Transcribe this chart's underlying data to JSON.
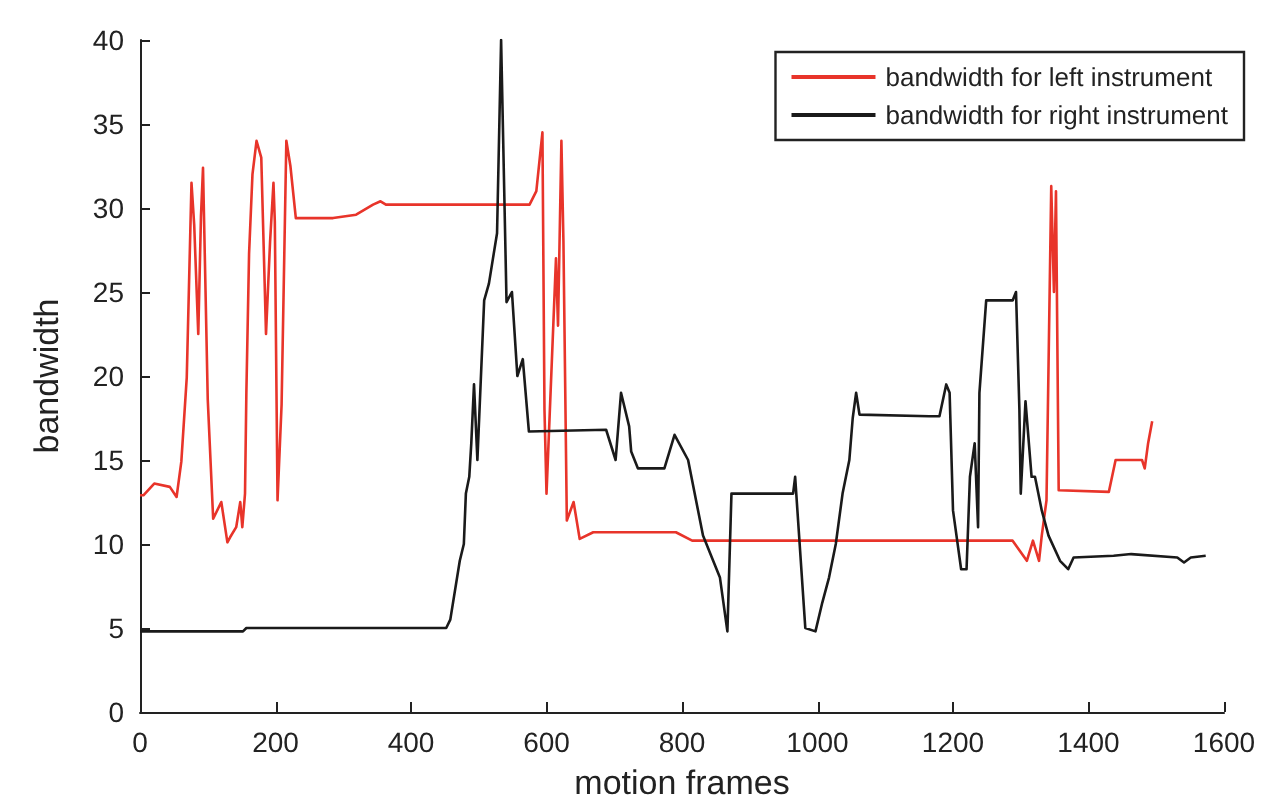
{
  "chart_data": {
    "type": "line",
    "xlabel": "motion frames",
    "ylabel": "bandwidth",
    "xlim": [
      0,
      1600
    ],
    "xticks": [
      0,
      200,
      400,
      600,
      800,
      1000,
      1200,
      1400,
      1600
    ],
    "ylim": [
      0,
      40
    ],
    "yticks": [
      0,
      5,
      10,
      15,
      20,
      25,
      30,
      35,
      40
    ],
    "grid": false,
    "legend": "top right",
    "marker": "none",
    "line_style": "solid",
    "series": [
      {
        "name": "bandwidth for left instrument",
        "color": "#e8342a",
        "x": [
          0,
          5,
          21,
          44,
          54,
          61,
          69,
          76,
          80,
          86,
          90,
          93,
          100,
          108,
          120,
          129,
          133,
          142,
          148,
          151,
          155,
          157,
          161,
          166,
          172,
          179,
          186,
          192,
          197,
          199,
          203,
          209,
          216,
          222,
          230,
          285,
          319,
          344,
          355,
          363,
          575,
          585,
          594,
          597,
          600,
          614,
          617,
          622,
          625,
          630,
          640,
          649,
          669,
          791,
          815,
          1288,
          1309,
          1318,
          1327,
          1331,
          1338,
          1345,
          1349,
          1352,
          1356,
          1430,
          1440,
          1479,
          1483,
          1488,
          1494
        ],
        "values": [
          12.9,
          12.9,
          13.6,
          13.4,
          12.8,
          14.9,
          19.9,
          31.5,
          29,
          22.5,
          29.5,
          32.4,
          18.6,
          11.5,
          12.5,
          10.1,
          10.4,
          11,
          12.5,
          11,
          13,
          19,
          27.3,
          32,
          34,
          33,
          22.5,
          28,
          31.5,
          29.2,
          12.6,
          18.3,
          34,
          32.5,
          29.4,
          29.4,
          29.6,
          30.2,
          30.4,
          30.2,
          30.2,
          31,
          34.5,
          18,
          13,
          27,
          23,
          34,
          28,
          11.4,
          12.5,
          10.3,
          10.7,
          10.7,
          10.2,
          10.2,
          9,
          10.2,
          9,
          10.5,
          12.6,
          31.3,
          25,
          31,
          13.2,
          13.1,
          15,
          15,
          14.5,
          16,
          17.3
        ]
      },
      {
        "name": "bandwidth for right instrument",
        "color": "#1a1a1a",
        "x": [
          0,
          152,
          157,
          452,
          458,
          472,
          478,
          481,
          486,
          489,
          493,
          498,
          508,
          515,
          521,
          527,
          533,
          541,
          549,
          557,
          565,
          574,
          688,
          702,
          710,
          722,
          725,
          735,
          774,
          789,
          809,
          831,
          846,
          856,
          867,
          873,
          964,
          967,
          982,
          997,
          1007,
          1017,
          1027,
          1037,
          1047,
          1052,
          1057,
          1062,
          1165,
          1180,
          1190,
          1195,
          1200,
          1212,
          1220,
          1225,
          1232,
          1237,
          1239,
          1249,
          1288,
          1293,
          1298,
          1300,
          1307,
          1316,
          1321,
          1331,
          1341,
          1358,
          1370,
          1378,
          1437,
          1463,
          1531,
          1541,
          1551,
          1573
        ],
        "values": [
          4.8,
          4.8,
          5,
          5,
          5.5,
          9,
          10,
          13,
          14,
          16,
          19.5,
          15,
          24.5,
          25.5,
          27,
          28.5,
          40,
          24.4,
          25,
          20,
          21,
          16.7,
          16.8,
          15,
          19,
          17,
          15.5,
          14.5,
          14.5,
          16.5,
          15,
          10.5,
          9,
          8,
          4.8,
          13,
          13,
          14,
          5,
          4.8,
          6.5,
          8,
          10,
          13,
          15,
          17.5,
          19,
          17.7,
          17.6,
          17.6,
          19.5,
          19,
          12,
          8.5,
          8.5,
          14,
          16,
          11,
          19,
          24.5,
          24.5,
          25,
          18,
          13,
          18.5,
          14,
          14,
          12,
          10.5,
          9,
          8.5,
          9.2,
          9.3,
          9.4,
          9.2,
          8.9,
          9.2,
          9.3
        ]
      }
    ]
  }
}
